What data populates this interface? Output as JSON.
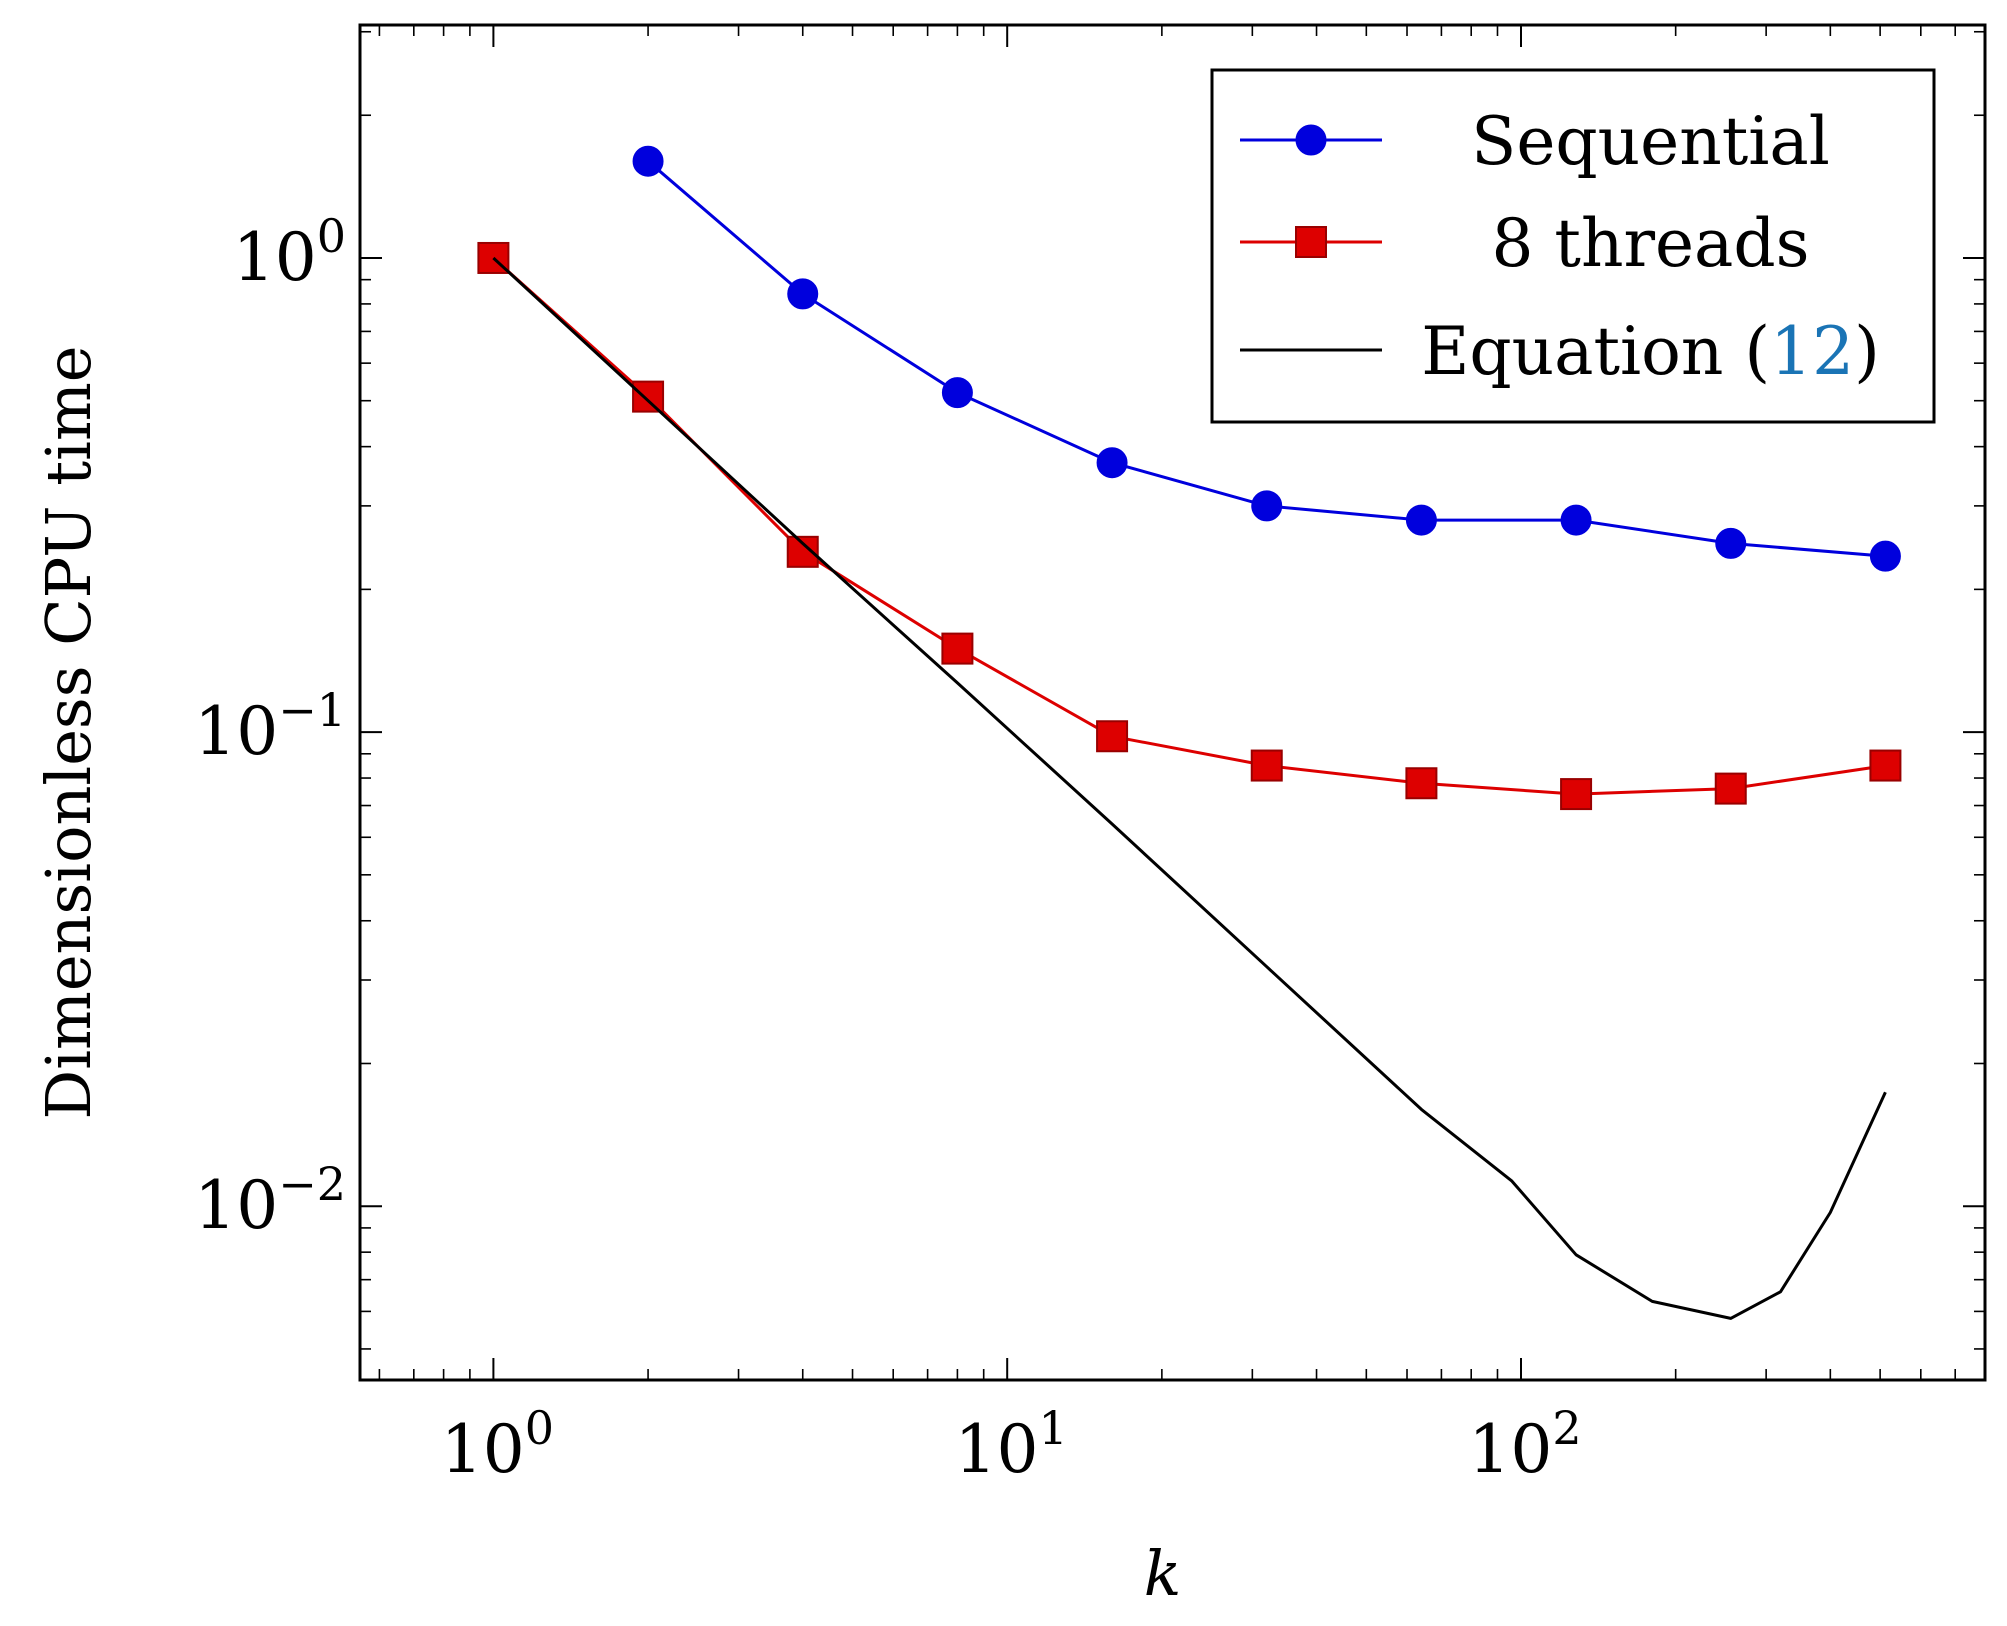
{
  "chart_data": {
    "type": "line",
    "title": "",
    "xlabel": "k",
    "ylabel": "Dimensionless CPU time",
    "x_scale": "log",
    "y_scale": "log",
    "xlim": [
      0.55,
      800
    ],
    "ylim": [
      0.0043,
      3.1
    ],
    "grid": false,
    "legend_position": "top-right",
    "x_ticks": [
      {
        "value": 1,
        "base": "10",
        "exp": "0"
      },
      {
        "value": 10,
        "base": "10",
        "exp": "1"
      },
      {
        "value": 100,
        "base": "10",
        "exp": "2"
      }
    ],
    "y_ticks": [
      {
        "value": 1,
        "base": "10",
        "exp": "0"
      },
      {
        "value": 0.1,
        "base": "10",
        "exp": "−1"
      },
      {
        "value": 0.01,
        "base": "10",
        "exp": "−2"
      }
    ],
    "series": [
      {
        "name": "Sequential",
        "color": "#0000dd",
        "marker": "circle",
        "x": [
          2,
          4,
          8,
          16,
          32,
          64,
          128,
          256,
          512
        ],
        "y": [
          1.6,
          0.84,
          0.52,
          0.37,
          0.3,
          0.28,
          0.28,
          0.25,
          0.235
        ]
      },
      {
        "name": "8 threads",
        "color": "#dd0000",
        "marker": "square",
        "x": [
          1,
          2,
          4,
          8,
          16,
          32,
          64,
          128,
          256,
          512
        ],
        "y": [
          1.0,
          0.51,
          0.24,
          0.15,
          0.098,
          0.085,
          0.078,
          0.074,
          0.076,
          0.085
        ]
      },
      {
        "name": "Equation",
        "legend_ref": "12",
        "color": "#000000",
        "marker": "none",
        "x": [
          1,
          2,
          4,
          8,
          16,
          32,
          64,
          96,
          128,
          180,
          256,
          320,
          400,
          512
        ],
        "y": [
          1.0,
          0.5,
          0.25,
          0.127,
          0.064,
          0.032,
          0.016,
          0.0113,
          0.0079,
          0.0063,
          0.0058,
          0.0066,
          0.0097,
          0.0174
        ]
      }
    ]
  }
}
